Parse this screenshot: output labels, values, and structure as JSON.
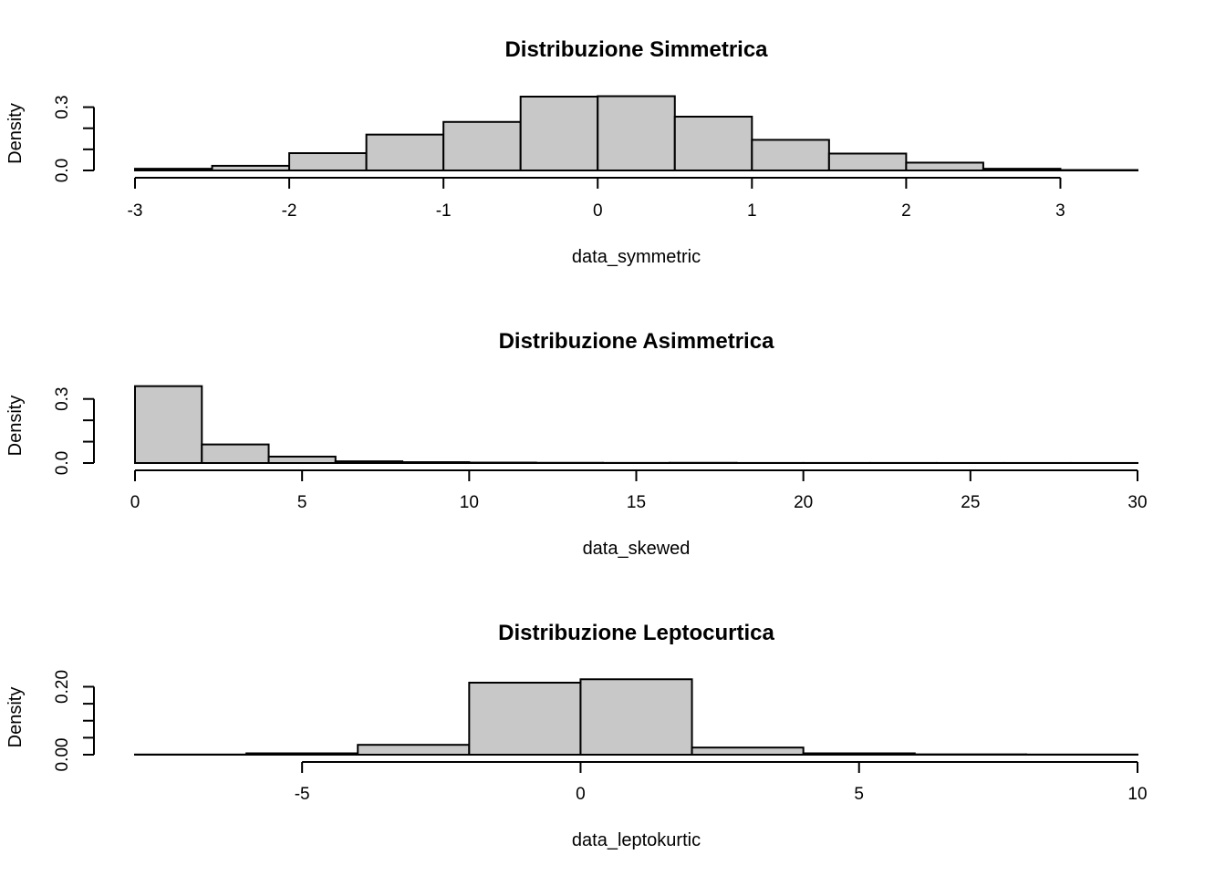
{
  "chart_data": [
    {
      "type": "bar",
      "title": "Distribuzione Simmetrica",
      "xlabel": "data_symmetric",
      "ylabel": "Density",
      "xlim": [
        -3,
        3.5
      ],
      "ylim": [
        0,
        0.35
      ],
      "x_ticks": [
        -3,
        -2,
        -1,
        0,
        1,
        2,
        3
      ],
      "x_tick_labels": [
        "-3",
        "-2",
        "-1",
        "0",
        "1",
        "2",
        "3"
      ],
      "y_ticks": [
        0.0,
        0.1,
        0.2,
        0.3
      ],
      "y_tick_labels": [
        "0.0",
        "0.3"
      ],
      "y_labeled_ticks": [
        0.0,
        0.3
      ],
      "bin_edges": [
        -3,
        -2.5,
        -2,
        -1.5,
        -1,
        -0.5,
        0,
        0.5,
        1,
        1.5,
        2,
        2.5,
        3,
        3.5
      ],
      "values": [
        0.008,
        0.022,
        0.082,
        0.17,
        0.23,
        0.35,
        0.352,
        0.255,
        0.145,
        0.08,
        0.037,
        0.008,
        0.002
      ]
    },
    {
      "type": "bar",
      "title": "Distribuzione Asimmetrica",
      "xlabel": "data_skewed",
      "ylabel": "Density",
      "xlim": [
        0,
        30
      ],
      "ylim": [
        0,
        0.35
      ],
      "x_ticks": [
        0,
        5,
        10,
        15,
        20,
        25,
        30
      ],
      "x_tick_labels": [
        "0",
        "5",
        "10",
        "15",
        "20",
        "25",
        "30"
      ],
      "y_ticks": [
        0.0,
        0.1,
        0.2,
        0.3
      ],
      "y_tick_labels": [
        "0.0",
        "0.3"
      ],
      "y_labeled_ticks": [
        0.0,
        0.3
      ],
      "bin_edges": [
        0,
        2,
        4,
        6,
        8,
        10,
        12,
        14,
        16,
        18,
        20,
        22,
        24,
        26,
        28,
        30
      ],
      "values": [
        0.36,
        0.087,
        0.03,
        0.008,
        0.004,
        0.002,
        0.001,
        0.0005,
        0.001,
        0.0003,
        0.0003,
        0.0003,
        0.0002,
        0.0002,
        0.0002
      ]
    },
    {
      "type": "bar",
      "title": "Distribuzione Leptocurtica",
      "xlabel": "data_leptokurtic",
      "ylabel": "Density",
      "xlim": [
        -8,
        10
      ],
      "ylim": [
        0,
        0.22
      ],
      "x_ticks": [
        -5,
        0,
        5,
        10
      ],
      "x_tick_labels": [
        "-5",
        "0",
        "5",
        "10"
      ],
      "y_ticks": [
        0.0,
        0.05,
        0.1,
        0.15,
        0.2
      ],
      "y_tick_labels": [
        "0.00",
        "0.20"
      ],
      "y_labeled_ticks": [
        0.0,
        0.2
      ],
      "bin_edges": [
        -8,
        -6,
        -4,
        -2,
        0,
        2,
        4,
        6,
        8,
        10
      ],
      "values": [
        0.0005,
        0.004,
        0.029,
        0.212,
        0.222,
        0.021,
        0.004,
        0.001,
        0.0005
      ]
    }
  ]
}
